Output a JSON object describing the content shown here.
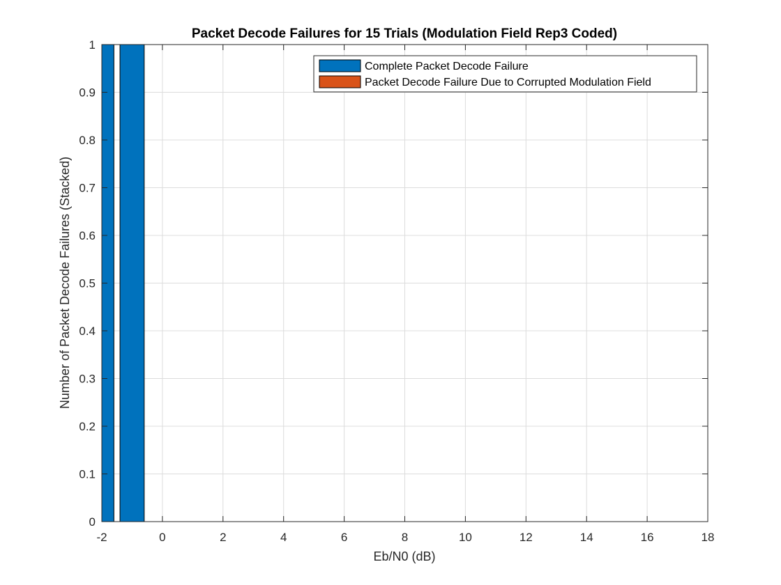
{
  "chart_data": {
    "type": "bar",
    "stacked": true,
    "title": "Packet Decode Failures for 15 Trials (Modulation Field Rep3 Coded)",
    "xlabel": "Eb/N0 (dB)",
    "ylabel": "Number of Packet Decode Failures (Stacked)",
    "xlim": [
      -2,
      18
    ],
    "ylim": [
      0,
      1
    ],
    "grid": true,
    "legend_position": "top-right",
    "x_ticks": [
      "-2",
      "0",
      "2",
      "4",
      "6",
      "8",
      "10",
      "12",
      "14",
      "16",
      "18"
    ],
    "y_ticks": [
      "0",
      "0.1",
      "0.2",
      "0.3",
      "0.4",
      "0.5",
      "0.6",
      "0.7",
      "0.8",
      "0.9",
      "1"
    ],
    "x": [
      -2,
      -1,
      0,
      1,
      2,
      3,
      4,
      5,
      6,
      7,
      8,
      9,
      10,
      11,
      12,
      13,
      14,
      15,
      16,
      17,
      18
    ],
    "series": [
      {
        "name": "Complete Packet Decode Failure",
        "color": "#0072BD",
        "values": [
          1,
          1,
          0,
          0,
          0,
          0,
          0,
          0,
          0,
          0,
          0,
          0,
          0,
          0,
          0,
          0,
          0,
          0,
          0,
          0,
          0
        ]
      },
      {
        "name": "Packet Decode Failure Due to Corrupted Modulation Field",
        "color": "#D95319",
        "values": [
          0,
          0,
          0,
          0,
          0,
          0,
          0,
          0,
          0,
          0,
          0,
          0,
          0,
          0,
          0,
          0,
          0,
          0,
          0,
          0,
          0
        ]
      }
    ]
  }
}
